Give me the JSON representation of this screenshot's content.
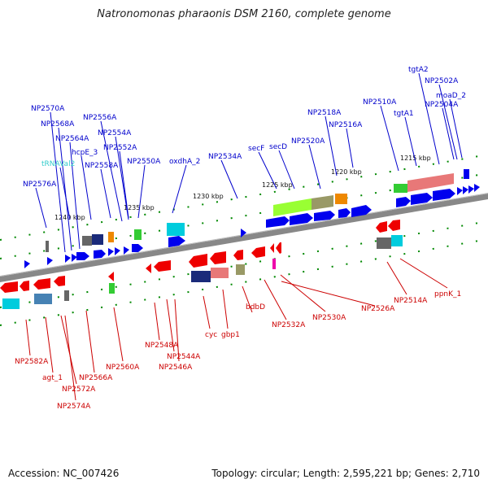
{
  "title": "Natronomonas pharaonis DSM 2160, complete genome",
  "footer": {
    "accession": "Accession: NC_007426",
    "info": "Topology: circular; Length: 2,595,221 bp; Genes: 2,710"
  },
  "colors": {
    "top_label": "#0000cc",
    "top_label_trna": "#33cccc",
    "bottom_label": "#cc0000",
    "gene_blue": "#0000ee",
    "gene_red": "#ee0000",
    "backbone": "#888888",
    "tick_green": "#008800"
  },
  "scale_labels": [
    "1240 kbp",
    "1235 kbp",
    "1230 kbp",
    "1225 kbp",
    "1220 kbp",
    "1215 kbp"
  ],
  "top_labels": [
    "NP2570A",
    "NP2568A",
    "NP2564A",
    "hcpE_3",
    "tRNAVal2",
    "NP2576A",
    "NP2556A",
    "NP2554A",
    "NP2552A",
    "NP2558A",
    "NP2550A",
    "oxdhA_2",
    "NP2534A",
    "secF",
    "secD",
    "NP2520A",
    "NP2518A",
    "NP2516A",
    "NP2510A",
    "tgtA1",
    "tgtA2",
    "NP2502A",
    "moaD_2",
    "NP2504A"
  ],
  "bottom_labels": [
    "NP2582A",
    "agt_1",
    "NP2572A",
    "NP2574A",
    "NP2566A",
    "NP2560A",
    "NP2548A",
    "NP2544A",
    "NP2546A",
    "cyc",
    "gbp1",
    "bdbD",
    "NP2532A",
    "NP2530A",
    "NP2526A",
    "NP2514A",
    "ppnK_1"
  ]
}
